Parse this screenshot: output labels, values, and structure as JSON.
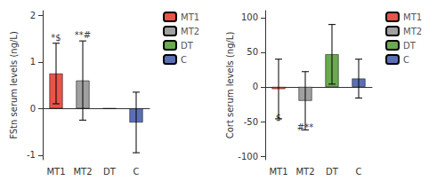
{
  "chart_data": [
    {
      "type": "bar",
      "ylabel": "FStn serum levels (ng/L)",
      "categories": [
        "MT1",
        "MT2",
        "DT",
        "C"
      ],
      "values": [
        0.75,
        0.6,
        0.0,
        -0.3
      ],
      "errors_pos": [
        0.65,
        0.85,
        0.0,
        0.65
      ],
      "errors_neg": [
        0.65,
        0.85,
        0.0,
        0.65
      ],
      "colors": [
        "#e8534b",
        "#a0a0a0",
        "#6aaa50",
        "#5b6fb5"
      ],
      "ylim": [
        -1.1,
        2.1
      ],
      "yticks": [
        -1,
        0,
        1,
        2
      ],
      "annotations": [
        {
          "text": "*$",
          "x": "MT1",
          "y": 1.42
        },
        {
          "text": "**#",
          "x": "MT2",
          "y": 1.48
        }
      ],
      "grid": false,
      "legend": "right"
    },
    {
      "type": "bar",
      "ylabel": "Cort serum levels (ng/L)",
      "categories": [
        "MT1",
        "MT2",
        "DT",
        "C"
      ],
      "values": [
        -3.0,
        -20.0,
        47.0,
        12.0
      ],
      "errors_pos": [
        43.0,
        42.0,
        43.0,
        28.0
      ],
      "errors_neg": [
        43.0,
        42.0,
        43.0,
        28.0
      ],
      "colors": [
        "#e8534b",
        "#a0a0a0",
        "#6aaa50",
        "#5b6fb5"
      ],
      "ylim": [
        -105,
        110
      ],
      "yticks": [
        -100,
        -50,
        0,
        50,
        100
      ],
      "annotations": [
        {
          "text": "$",
          "x": "MT1",
          "y": -50
        },
        {
          "text": "#**",
          "x": "MT2",
          "y": -65
        }
      ],
      "grid": false,
      "legend": "right"
    }
  ]
}
